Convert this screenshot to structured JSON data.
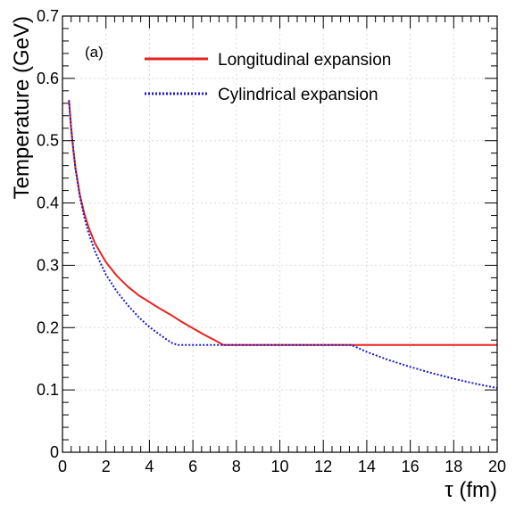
{
  "chart_data": {
    "type": "line",
    "panel_label": "(a)",
    "xlabel": "τ (fm)",
    "ylabel": "Temperature (GeV)",
    "xlim": [
      0,
      20
    ],
    "ylim": [
      0,
      0.7
    ],
    "xticks": [
      0,
      2,
      4,
      6,
      8,
      10,
      12,
      14,
      16,
      18,
      20
    ],
    "xtick_labels": [
      "0",
      "2",
      "4",
      "6",
      "8",
      "10",
      "12",
      "14",
      "16",
      "18",
      "20"
    ],
    "yticks": [
      0,
      0.1,
      0.2,
      0.3,
      0.4,
      0.5,
      0.6,
      0.7
    ],
    "ytick_labels": [
      "0",
      "0.1",
      "0.2",
      "0.3",
      "0.4",
      "0.5",
      "0.6",
      "0.7"
    ],
    "grid": true,
    "legend_position": "top-right",
    "series": [
      {
        "name": "Longitudinal expansion",
        "color": "#e8231e",
        "style": "solid",
        "x": [
          0.3,
          0.4,
          0.5,
          0.6,
          0.8,
          1.0,
          1.2,
          1.5,
          2.0,
          2.5,
          3.0,
          3.5,
          4.0,
          4.5,
          5.0,
          5.5,
          6.0,
          6.5,
          7.0,
          7.4,
          8,
          10,
          12,
          14,
          16,
          18,
          20
        ],
        "values": [
          0.565,
          0.52,
          0.485,
          0.455,
          0.413,
          0.384,
          0.361,
          0.335,
          0.305,
          0.283,
          0.266,
          0.252,
          0.241,
          0.23,
          0.22,
          0.209,
          0.199,
          0.189,
          0.18,
          0.172,
          0.172,
          0.172,
          0.172,
          0.172,
          0.172,
          0.172,
          0.172
        ]
      },
      {
        "name": "Cylindrical expansion",
        "color": "#1b1bd0",
        "style": "dotted",
        "x": [
          0.3,
          0.4,
          0.5,
          0.6,
          0.8,
          1.0,
          1.2,
          1.5,
          2.0,
          2.5,
          3.0,
          3.5,
          4.0,
          4.5,
          5.0,
          5.3,
          6.0,
          7.5,
          10,
          13.3,
          14,
          15,
          16,
          17,
          18,
          19,
          20
        ],
        "values": [
          0.565,
          0.52,
          0.485,
          0.455,
          0.41,
          0.378,
          0.352,
          0.322,
          0.285,
          0.258,
          0.236,
          0.217,
          0.201,
          0.188,
          0.176,
          0.172,
          0.172,
          0.172,
          0.172,
          0.172,
          0.161,
          0.148,
          0.137,
          0.127,
          0.118,
          0.11,
          0.103
        ]
      }
    ]
  }
}
